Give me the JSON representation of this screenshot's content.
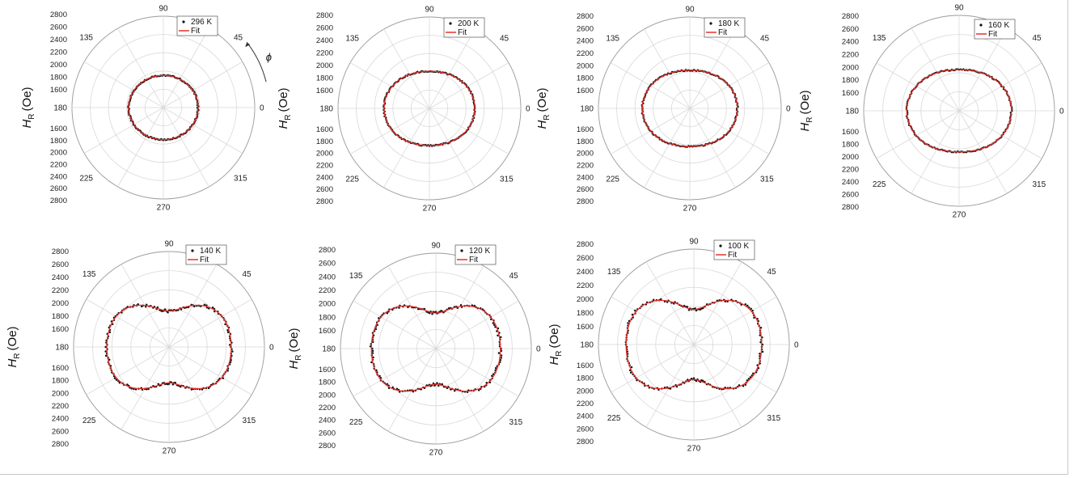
{
  "angle_labels": [
    "90",
    "45",
    "0",
    "315",
    "270",
    "225",
    "180",
    "135"
  ],
  "ylabel": {
    "symbol": "H",
    "subscript": "R",
    "unit": "(Oe)"
  },
  "phi_label": "ϕ",
  "legend_fit": "Fit",
  "colors": {
    "data": "#111111",
    "fit": "#e8302a",
    "grid": "#d9d9d9"
  },
  "chart_data": [
    {
      "type": "polar-scatter",
      "temperature": "296 K",
      "legend": [
        "296 K",
        "Fit"
      ],
      "r_ticks": [
        1600,
        1800,
        2000,
        2200,
        2400,
        2600,
        2800
      ],
      "rlim": [
        1350,
        2800
      ],
      "model": {
        "r0": 1880,
        "a2": 20,
        "a4": 0
      }
    },
    {
      "type": "polar-scatter",
      "temperature": "200 K",
      "legend": [
        "200 K",
        "Fit"
      ],
      "r_ticks": [
        1600,
        1800,
        2000,
        2200,
        2400,
        2600,
        2800
      ],
      "rlim": [
        1350,
        2800
      ],
      "model": {
        "r0": 2005,
        "a2": 65,
        "a4": 0
      }
    },
    {
      "type": "polar-scatter",
      "temperature": "180 K",
      "legend": [
        "180 K",
        "Fit"
      ],
      "r_ticks": [
        1600,
        1800,
        2000,
        2200,
        2400,
        2600,
        2800
      ],
      "rlim": [
        1350,
        2800
      ],
      "model": {
        "r0": 2030,
        "a2": 75,
        "a4": 0
      }
    },
    {
      "type": "polar-scatter",
      "temperature": "160 K",
      "legend": [
        "160 K",
        "Fit"
      ],
      "r_ticks": [
        1600,
        1800,
        2000,
        2200,
        2400,
        2600,
        2800
      ],
      "rlim": [
        1350,
        2800
      ],
      "model": {
        "r0": 2060,
        "a2": 85,
        "a4": 0
      }
    },
    {
      "type": "polar-scatter",
      "temperature": "140 K",
      "legend": [
        "140 K",
        "Fit"
      ],
      "r_ticks": [
        1600,
        1800,
        2000,
        2200,
        2400,
        2600,
        2800
      ],
      "rlim": [
        1350,
        2800
      ],
      "model": {
        "r0": 2150,
        "a2": 200,
        "a4": -55
      }
    },
    {
      "type": "polar-scatter",
      "temperature": "120 K",
      "legend": [
        "120 K",
        "Fit"
      ],
      "r_ticks": [
        1600,
        1800,
        2000,
        2200,
        2400,
        2600,
        2800
      ],
      "rlim": [
        1350,
        2800
      ],
      "model": {
        "r0": 2170,
        "a2": 220,
        "a4": -60
      }
    },
    {
      "type": "polar-scatter",
      "temperature": "100 K",
      "legend": [
        "100 K",
        "Fit"
      ],
      "r_ticks": [
        1600,
        1800,
        2000,
        2200,
        2400,
        2600,
        2800
      ],
      "rlim": [
        1350,
        2800
      ],
      "model": {
        "r0": 2200,
        "a2": 250,
        "a4": -70
      }
    }
  ]
}
